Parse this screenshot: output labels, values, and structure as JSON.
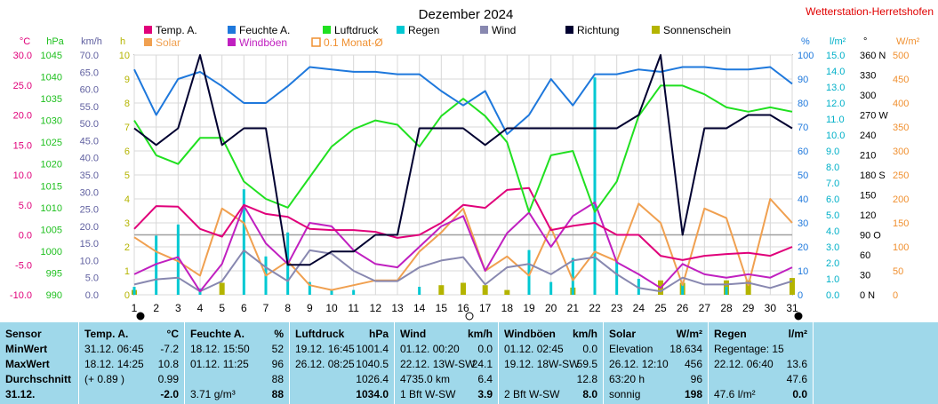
{
  "title": "Dezember 2024",
  "station": "Wetterstation-Herretshofen",
  "legend": [
    {
      "label": "Temp. A.",
      "color": "#e0007a",
      "type": "line"
    },
    {
      "label": "Feuchte A.",
      "color": "#1e78dc",
      "type": "line"
    },
    {
      "label": "Luftdruck",
      "color": "#20e020",
      "type": "line"
    },
    {
      "label": "Regen",
      "color": "#00c8d2",
      "type": "bar"
    },
    {
      "label": "Wind",
      "color": "#8888b0",
      "type": "line"
    },
    {
      "label": "Richtung",
      "color": "#000030",
      "type": "line"
    },
    {
      "label": "Sonnenschein",
      "color": "#b4b400",
      "type": "bar"
    },
    {
      "label": "Solar",
      "color": "#f0a050",
      "type": "line"
    },
    {
      "label": "Windböen",
      "color": "#c020c0",
      "type": "line"
    },
    {
      "label": "0.1 Monat-Ø",
      "color": "#f09030",
      "type": "outline"
    }
  ],
  "axes": {
    "temp": {
      "unit": "°C",
      "color": "#e0007a",
      "ticks": [
        "30.0",
        "25.0",
        "20.0",
        "15.0",
        "10.0",
        "5.0",
        "0.0",
        "-5.0",
        "-10.0"
      ]
    },
    "pressure": {
      "unit": "hPa",
      "color": "#20c020",
      "ticks": [
        "1045",
        "1040",
        "1035",
        "1030",
        "1025",
        "1020",
        "1015",
        "1010",
        "1005",
        "1000",
        "995",
        "990"
      ]
    },
    "wind": {
      "unit": "km/h",
      "color": "#6060a0",
      "ticks": [
        "70.0",
        "65.0",
        "60.0",
        "55.0",
        "50.0",
        "45.0",
        "40.0",
        "35.0",
        "30.0",
        "25.0",
        "20.0",
        "15.0",
        "10.0",
        "5.0",
        "0.0"
      ]
    },
    "sun": {
      "unit": "h",
      "color": "#b4b400",
      "ticks": [
        "10",
        "9",
        "8",
        "7",
        "6",
        "5",
        "4",
        "3",
        "2",
        "1",
        "0"
      ]
    },
    "humidity": {
      "unit": "%",
      "color": "#1e78dc",
      "ticks": [
        "100",
        "90",
        "80",
        "70",
        "60",
        "50",
        "40",
        "30",
        "20",
        "10",
        "0"
      ]
    },
    "rain": {
      "unit": "l/m²",
      "color": "#00b0c8",
      "ticks": [
        "15.0",
        "14.0",
        "13.0",
        "12.0",
        "11.0",
        "10.0",
        "9.0",
        "8.0",
        "7.0",
        "6.0",
        "5.0",
        "4.0",
        "3.0",
        "2.0",
        "1.0",
        "0.0"
      ]
    },
    "direction": {
      "unit": "°",
      "color": "#000000",
      "ticks": [
        "360 N",
        "330",
        "300",
        "270 W",
        "240",
        "210",
        "180 S",
        "150",
        "120",
        "90 O",
        "60",
        "30",
        "0 N"
      ]
    },
    "solar": {
      "unit": "W/m²",
      "color": "#f09030",
      "ticks": [
        "500",
        "450",
        "400",
        "350",
        "300",
        "250",
        "200",
        "150",
        "100",
        "50",
        "0"
      ]
    }
  },
  "chart_data": {
    "type": "line",
    "x": [
      1,
      2,
      3,
      4,
      5,
      6,
      7,
      8,
      9,
      10,
      11,
      12,
      13,
      14,
      15,
      16,
      17,
      18,
      19,
      20,
      21,
      22,
      23,
      24,
      25,
      26,
      27,
      28,
      29,
      30,
      31
    ],
    "xlim": [
      1,
      31
    ],
    "series": [
      {
        "name": "Temp. A.",
        "axis": "temp",
        "ylim": [
          -10,
          30
        ],
        "values": [
          1.0,
          4.8,
          4.7,
          1.0,
          -0.3,
          5.0,
          3.5,
          3.0,
          1.0,
          0.8,
          0.8,
          0.5,
          -0.5,
          0.0,
          2.0,
          5.0,
          4.5,
          7.5,
          7.8,
          0.8,
          1.5,
          2.0,
          0.0,
          0.0,
          -3.5,
          -4.2,
          -3.5,
          -3.2,
          -3.0,
          -3.5,
          -2.0
        ]
      },
      {
        "name": "Feuchte A.",
        "axis": "humidity",
        "ylim": [
          0,
          100
        ],
        "values": [
          94,
          75,
          90,
          93,
          87,
          80,
          80,
          87,
          95,
          94,
          93,
          93,
          92,
          92,
          85,
          79,
          85,
          67,
          75,
          90,
          79,
          92,
          92,
          94,
          93,
          95,
          95,
          94,
          94,
          95,
          88
        ]
      },
      {
        "name": "Luftdruck",
        "axis": "pressure",
        "ylim": [
          990,
          1045
        ],
        "values": [
          1030,
          1022,
          1020,
          1026,
          1026,
          1016,
          1012,
          1010,
          1017,
          1024,
          1028,
          1030,
          1029,
          1024,
          1031,
          1035,
          1031,
          1025,
          1009,
          1022,
          1023,
          1009,
          1016,
          1031,
          1038,
          1038,
          1036,
          1033,
          1032,
          1033,
          1032
        ]
      },
      {
        "name": "Wind",
        "axis": "wind",
        "ylim": [
          0,
          70
        ],
        "values": [
          3.0,
          4.5,
          5.0,
          1.0,
          4.0,
          13.0,
          8.0,
          4.0,
          13.0,
          12.0,
          7.0,
          4.0,
          4.0,
          8.0,
          10.0,
          11.0,
          3.0,
          8.0,
          9.0,
          6.0,
          10.0,
          11.0,
          6.0,
          2.0,
          1.0,
          5.0,
          3.0,
          3.0,
          3.5,
          2.0,
          4.0
        ]
      },
      {
        "name": "Windböen",
        "axis": "wind",
        "ylim": [
          0,
          70
        ],
        "values": [
          6.0,
          9.0,
          11.0,
          1.0,
          9.0,
          26.0,
          15.0,
          9.0,
          21.0,
          20.0,
          13.0,
          9.0,
          8.0,
          14.0,
          20.0,
          23.0,
          7.0,
          18.0,
          24.0,
          14.0,
          23.0,
          27.0,
          9.5,
          6.0,
          2.0,
          9.0,
          6.0,
          5.0,
          6.0,
          5.0,
          8.0
        ]
      },
      {
        "name": "Richtung",
        "axis": "direction",
        "ylim": [
          0,
          360
        ],
        "values": [
          250,
          225,
          250,
          360,
          225,
          250,
          250,
          45,
          45,
          65,
          65,
          90,
          90,
          250,
          250,
          250,
          225,
          250,
          250,
          250,
          250,
          250,
          250,
          270,
          360,
          90,
          250,
          250,
          270,
          270,
          250
        ]
      },
      {
        "name": "Solar",
        "axis": "solar",
        "ylim": [
          0,
          500
        ],
        "values": [
          120,
          90,
          70,
          40,
          180,
          150,
          40,
          70,
          20,
          10,
          20,
          30,
          30,
          90,
          130,
          180,
          50,
          80,
          40,
          140,
          30,
          90,
          70,
          190,
          150,
          20,
          180,
          160,
          20,
          200,
          150
        ]
      },
      {
        "name": "Sonnenschein",
        "axis": "sun",
        "ylim": [
          0,
          10
        ],
        "values": [
          0.2,
          0,
          0,
          0,
          0.5,
          0,
          0,
          0,
          0,
          0,
          0,
          0,
          0,
          0,
          0.4,
          0.5,
          0.4,
          0.2,
          0,
          0,
          0.3,
          0,
          0,
          0,
          0.6,
          0.5,
          0,
          0.6,
          0.6,
          0,
          0.7
        ]
      },
      {
        "name": "Regen",
        "axis": "rain",
        "ylim": [
          0,
          15
        ],
        "values": [
          0.5,
          3.7,
          4.4,
          0.4,
          0,
          6.6,
          2.4,
          3.9,
          0.8,
          0.3,
          0.3,
          0,
          0,
          0.5,
          0,
          0,
          0,
          0,
          2.8,
          0.8,
          2.3,
          13.6,
          2.2,
          1.0,
          0,
          0.8,
          0,
          0.5,
          0,
          0,
          0
        ]
      }
    ]
  },
  "stats": {
    "sensor": {
      "header": "Sensor",
      "rows": [
        "MinWert",
        "MaxWert",
        "Durchschnitt"
      ],
      "date": "31.12."
    },
    "temp": {
      "header": "Temp. A.",
      "unit": "°C",
      "min_time": "31.12.  06:45",
      "min": "-7.2",
      "max_time": "18.12.  14:25",
      "max": "10.8",
      "avg_note": "(+ 0.89 )",
      "avg": "0.99",
      "cur": "-2.0"
    },
    "humidity": {
      "header": "Feuchte A.",
      "unit": "%",
      "min_time": "18.12.  15:50",
      "min": "52",
      "max_time": "01.12.  11:25",
      "max": "96",
      "avg": "88",
      "abs": "3.71 g/m³",
      "cur": "88"
    },
    "pressure": {
      "header": "Luftdruck",
      "unit": "hPa",
      "min_time": "19.12.  16:45",
      "min": "1001.4",
      "max_time": "26.12.  08:25",
      "max": "1040.5",
      "avg": "1026.4",
      "cur": "1034.0"
    },
    "wind": {
      "header": "Wind",
      "unit": "km/h",
      "min_time": "01.12.  00:20",
      "min": "0.0",
      "max_time": "22.12.  13W-SW",
      "max": "24.1",
      "dist": "4735.0 km",
      "avg": "6.4",
      "cur_label": "1 Bft W-SW",
      "cur": "3.9"
    },
    "gust": {
      "header": "Windböen",
      "unit": "km/h",
      "min_time": "01.12.  02:45",
      "min": "0.0",
      "max_time": "19.12.  18W-SW",
      "max": "59.5",
      "avg": "12.8",
      "cur_label": "2 Bft W-SW",
      "cur": "8.0"
    },
    "solar": {
      "header": "Solar",
      "unit": "W/m²",
      "r1_label": "Elevation",
      "r1": "18.634",
      "r2_label": "26.12.  12:10",
      "r2": "456",
      "r3_label": "63:20 h",
      "r3": "96",
      "cur_label": "sonnig",
      "cur": "198"
    },
    "rain": {
      "header": "Regen",
      "unit": "l/m²",
      "r1_label": "Regentage: 15",
      "r1": "",
      "r2_label": "22.12.  06:40",
      "r2": "13.6",
      "r3_label": "",
      "r3": "47.6",
      "cur_label": "47.6 l/m²",
      "cur": "0.0"
    }
  }
}
